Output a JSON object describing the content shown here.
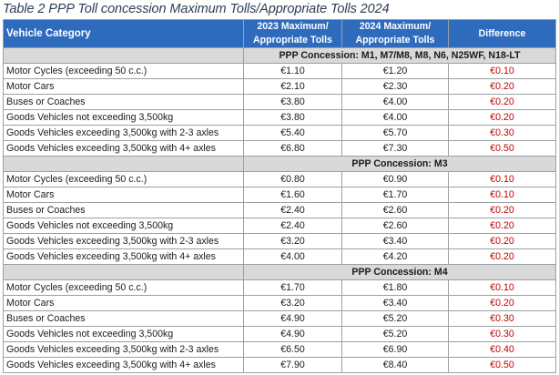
{
  "caption": "Table 2 PPP Toll concession Maximum Tolls/Appropriate Tolls 2024",
  "headers": {
    "category": "Vehicle Category",
    "col2023": "2023 Maximum/\nAppropriate Tolls",
    "col2024": "2024 Maximum/\nAppropriate Tolls",
    "difference": "Difference"
  },
  "sections": [
    {
      "title": "PPP Concession:  M1, M7/M8, M8, N6, N25WF, N18-LT",
      "rows": [
        {
          "category": "Motor Cycles (exceeding 50 c.c.)",
          "t2023": "€1.10",
          "t2024": "€1.20",
          "diff": "€0.10"
        },
        {
          "category": "Motor Cars",
          "t2023": "€2.10",
          "t2024": "€2.30",
          "diff": "€0.20"
        },
        {
          "category": "Buses or Coaches",
          "t2023": "€3.80",
          "t2024": "€4.00",
          "diff": "€0.20"
        },
        {
          "category": "Goods Vehicles not exceeding 3,500kg",
          "t2023": "€3.80",
          "t2024": "€4.00",
          "diff": "€0.20"
        },
        {
          "category": "Goods Vehicles exceeding 3,500kg with 2-3 axles",
          "t2023": "€5.40",
          "t2024": "€5.70",
          "diff": "€0.30"
        },
        {
          "category": "Goods Vehicles exceeding 3,500kg with 4+ axles",
          "t2023": "€6.80",
          "t2024": "€7.30",
          "diff": "€0.50"
        }
      ]
    },
    {
      "title": "PPP Concession:  M3",
      "rows": [
        {
          "category": "Motor Cycles (exceeding 50 c.c.)",
          "t2023": "€0.80",
          "t2024": "€0.90",
          "diff": "€0.10"
        },
        {
          "category": "Motor Cars",
          "t2023": "€1.60",
          "t2024": "€1.70",
          "diff": "€0.10"
        },
        {
          "category": "Buses or Coaches",
          "t2023": "€2.40",
          "t2024": "€2.60",
          "diff": "€0.20"
        },
        {
          "category": "Goods Vehicles not exceeding 3,500kg",
          "t2023": "€2.40",
          "t2024": "€2.60",
          "diff": "€0.20"
        },
        {
          "category": "Goods Vehicles exceeding 3,500kg with 2-3 axles",
          "t2023": "€3.20",
          "t2024": "€3.40",
          "diff": "€0.20"
        },
        {
          "category": "Goods Vehicles exceeding 3,500kg with 4+ axles",
          "t2023": "€4.00",
          "t2024": "€4.20",
          "diff": "€0.20"
        }
      ]
    },
    {
      "title": "PPP Concession:  M4",
      "rows": [
        {
          "category": "Motor Cycles (exceeding 50 c.c.)",
          "t2023": "€1.70",
          "t2024": "€1.80",
          "diff": "€0.10"
        },
        {
          "category": "Motor Cars",
          "t2023": "€3.20",
          "t2024": "€3.40",
          "diff": "€0.20"
        },
        {
          "category": "Buses or Coaches",
          "t2023": "€4.90",
          "t2024": "€5.20",
          "diff": "€0.30"
        },
        {
          "category": "Goods Vehicles not exceeding 3,500kg",
          "t2023": "€4.90",
          "t2024": "€5.20",
          "diff": "€0.30"
        },
        {
          "category": "Goods Vehicles exceeding 3,500kg with 2-3 axles",
          "t2023": "€6.50",
          "t2024": "€6.90",
          "diff": "€0.40"
        },
        {
          "category": "Goods Vehicles exceeding 3,500kg with 4+ axles",
          "t2023": "€7.90",
          "t2024": "€8.40",
          "diff": "€0.50"
        }
      ]
    }
  ],
  "colors": {
    "header_bg": "#2f6bbd",
    "section_bg": "#d9d9d9",
    "difference_text": "#c00000"
  }
}
